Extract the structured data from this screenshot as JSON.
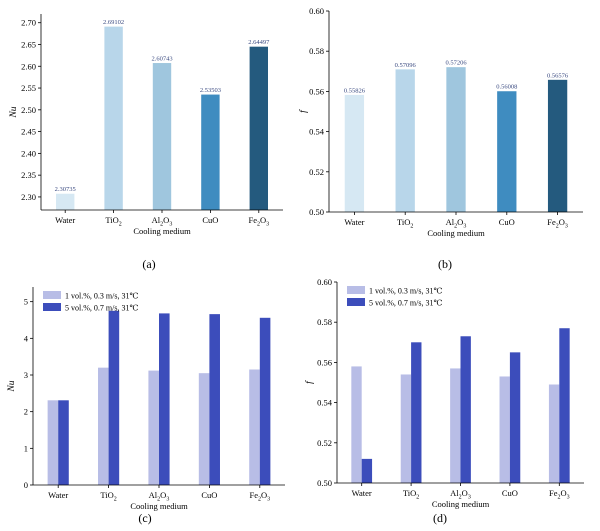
{
  "colors": {
    "bar_shades": [
      "#d6e8f3",
      "#b8d6ea",
      "#9fc6de",
      "#3f8cc0",
      "#245a7e"
    ],
    "series_light": "#b8bde6",
    "series_dark": "#3c4dbb",
    "axis": "#000000",
    "value_label": "#3a4a80"
  },
  "chart_data": [
    {
      "type": "bar",
      "panel_label": "(a)",
      "xlabel": "Cooling medium",
      "ylabel": "Nu",
      "categories": [
        "Water",
        "TiO2",
        "Al2O3",
        "CuO",
        "Fe2O3"
      ],
      "values": [
        2.30735,
        2.69102,
        2.60743,
        2.53503,
        2.64497
      ],
      "data_labels": [
        "2.30735",
        "2.69102",
        "2.60743",
        "2.53503",
        "2.64497"
      ],
      "ylim": [
        2.27,
        2.72
      ],
      "yticks": [
        2.3,
        2.35,
        2.4,
        2.45,
        2.5,
        2.55,
        2.6,
        2.65,
        2.7
      ],
      "ytick_labels": [
        "2.30",
        "2.35",
        "2.40",
        "2.45",
        "2.50",
        "2.55",
        "2.60",
        "2.65",
        "2.70"
      ]
    },
    {
      "type": "bar",
      "panel_label": "(b)",
      "xlabel": "Cooling medium",
      "ylabel": "f",
      "categories": [
        "Water",
        "TiO2",
        "Al2O3",
        "CuO",
        "Fe2O3"
      ],
      "values": [
        0.55826,
        0.57096,
        0.57206,
        0.56008,
        0.56576
      ],
      "data_labels": [
        "0.55826",
        "0.57096",
        "0.57206",
        "0.56008",
        "0.56576"
      ],
      "ylim": [
        0.5,
        0.6
      ],
      "yticks": [
        0.5,
        0.52,
        0.54,
        0.56,
        0.58,
        0.6
      ],
      "ytick_labels": [
        "0.50",
        "0.52",
        "0.54",
        "0.56",
        "0.58",
        "0.60"
      ]
    },
    {
      "type": "bar",
      "panel_label": "(c)",
      "xlabel": "Cooling medium",
      "ylabel": "Nu",
      "categories": [
        "Water",
        "TiO2",
        "Al2O3",
        "CuO",
        "Fe2O3"
      ],
      "series": [
        {
          "name": "1 vol.%, 0.3 m/s, 31℃",
          "values": [
            2.31,
            3.2,
            3.12,
            3.05,
            3.15
          ]
        },
        {
          "name": "5 vol.%, 0.7 m/s, 31℃",
          "values": [
            2.31,
            4.75,
            4.68,
            4.66,
            4.56
          ]
        }
      ],
      "ylim": [
        0,
        5.4
      ],
      "yticks": [
        0,
        1,
        2,
        3,
        4,
        5
      ],
      "ytick_labels": [
        "0",
        "1",
        "2",
        "3",
        "4",
        "5"
      ],
      "legend": "top-left"
    },
    {
      "type": "bar",
      "panel_label": "(d)",
      "xlabel": "Cooling medium",
      "ylabel": "f",
      "categories": [
        "Water",
        "TiO2",
        "Al2O3",
        "CuO",
        "Fe2O3"
      ],
      "series": [
        {
          "name": "1 vol.%, 0.3 m/s, 31℃",
          "values": [
            0.558,
            0.554,
            0.557,
            0.553,
            0.549
          ]
        },
        {
          "name": "5 vol.%, 0.7 m/s, 31℃",
          "values": [
            0.512,
            0.57,
            0.573,
            0.565,
            0.577
          ]
        }
      ],
      "ylim": [
        0.5,
        0.6
      ],
      "yticks": [
        0.5,
        0.52,
        0.54,
        0.56,
        0.58,
        0.6
      ],
      "ytick_labels": [
        "0.50",
        "0.52",
        "0.54",
        "0.56",
        "0.58",
        "0.60"
      ],
      "legend": "top-left"
    }
  ]
}
